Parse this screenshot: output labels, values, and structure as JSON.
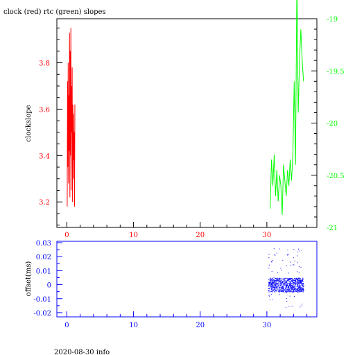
{
  "title": "clock (red) rtc (green) slopes",
  "footer": "2020-08-30 info",
  "colors": {
    "clock": "#ff0000",
    "rtc": "#00ff00",
    "offset": "#0000ff",
    "axis": "#000000",
    "lower_axis": "#0000ff"
  },
  "chart_data": [
    {
      "type": "line",
      "title": "clock (red) rtc (green) slopes",
      "xlabel": "",
      "ylabel": "clockslope",
      "xlim": [
        -1.5,
        37.5
      ],
      "xticks": [
        "0",
        "10",
        "20",
        "30"
      ],
      "y_left": {
        "lim": [
          3.09,
          3.99
        ],
        "ticks": [
          "3.2",
          "3.4",
          "3.6",
          "3.8"
        ]
      },
      "y_right": {
        "lim": [
          -21,
          -19.0
        ],
        "ticks": [
          "-19",
          "-19.5",
          "-20",
          "-20.5",
          "-21"
        ]
      },
      "grid": false,
      "series": [
        {
          "name": "clock",
          "axis": "left",
          "x": [
            0.05,
            0.1,
            0.15,
            0.2,
            0.25,
            0.3,
            0.35,
            0.4,
            0.45,
            0.5,
            0.55,
            0.6,
            0.65,
            0.7,
            0.75,
            0.8,
            0.85,
            0.9,
            0.95,
            1.0,
            1.05,
            1.1,
            1.15,
            1.2
          ],
          "y": [
            3.18,
            3.72,
            3.35,
            3.8,
            3.28,
            3.66,
            3.42,
            3.93,
            3.22,
            3.85,
            3.4,
            3.95,
            3.25,
            3.7,
            3.5,
            3.78,
            3.2,
            3.62,
            3.3,
            3.58,
            3.38,
            3.5,
            3.18,
            3.62
          ]
        },
        {
          "name": "rtc",
          "axis": "right",
          "x": [
            30.5,
            30.7,
            30.9,
            31.1,
            31.3,
            31.5,
            31.7,
            31.9,
            32.1,
            32.3,
            32.5,
            32.7,
            32.9,
            33.1,
            33.3,
            33.5,
            33.7,
            33.9,
            34.1,
            34.3,
            34.5,
            34.7,
            34.9,
            35.1,
            35.3,
            35.5
          ],
          "y": [
            -20.82,
            -20.35,
            -20.6,
            -20.3,
            -20.7,
            -20.45,
            -20.75,
            -20.5,
            -20.6,
            -20.88,
            -20.4,
            -20.55,
            -20.7,
            -20.45,
            -20.6,
            -20.35,
            -20.55,
            -20.3,
            -19.6,
            -20.4,
            -18.6,
            -19.9,
            -19.4,
            -19.1,
            -19.4,
            -19.6
          ]
        }
      ]
    },
    {
      "type": "scatter",
      "xlabel": "",
      "ylabel": "offset(ms)",
      "xlim": [
        -1.5,
        37.5
      ],
      "ylim": [
        -0.023,
        0.031
      ],
      "xticks": [
        "0",
        "10",
        "20",
        "30"
      ],
      "yticks": [
        "0.03",
        "0.02",
        "0.01",
        "0",
        "-0.01",
        "-0.02"
      ],
      "grid": false,
      "series": [
        {
          "name": "offset",
          "x_range": [
            30.2,
            35.5
          ],
          "y_core_range": [
            -0.005,
            0.005
          ],
          "y_outlier_range": [
            -0.016,
            0.026
          ]
        }
      ]
    }
  ]
}
